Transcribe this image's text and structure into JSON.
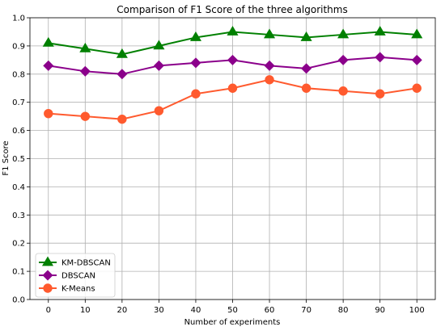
{
  "chart_data": {
    "type": "line",
    "title": "Comparison of F1 Score of the three algorithms",
    "xlabel": "Number of experiments",
    "ylabel": "F1 Score",
    "x": [
      0,
      10,
      20,
      30,
      40,
      50,
      60,
      70,
      80,
      90,
      100
    ],
    "xticks": [
      "0",
      "10",
      "20",
      "30",
      "40",
      "50",
      "60",
      "70",
      "80",
      "90",
      "100"
    ],
    "yticks": [
      "0.0",
      "0.1",
      "0.2",
      "0.3",
      "0.4",
      "0.5",
      "0.6",
      "0.7",
      "0.8",
      "0.9",
      "1.0"
    ],
    "xlim": [
      -5,
      105
    ],
    "ylim": [
      0,
      1.0
    ],
    "grid": true,
    "legend_position": "lower-left",
    "series": [
      {
        "name": "KM-DBSCAN",
        "color": "#008000",
        "marker": "triangle",
        "values": [
          0.91,
          0.89,
          0.87,
          0.9,
          0.93,
          0.95,
          0.94,
          0.93,
          0.94,
          0.95,
          0.94
        ]
      },
      {
        "name": "DBSCAN",
        "color": "#8b008b",
        "marker": "diamond",
        "values": [
          0.83,
          0.81,
          0.8,
          0.83,
          0.84,
          0.85,
          0.83,
          0.82,
          0.85,
          0.86,
          0.85
        ]
      },
      {
        "name": "K-Means",
        "color": "#ff5a2e",
        "marker": "circle",
        "values": [
          0.66,
          0.65,
          0.64,
          0.67,
          0.73,
          0.75,
          0.78,
          0.75,
          0.74,
          0.73,
          0.75
        ]
      }
    ]
  }
}
